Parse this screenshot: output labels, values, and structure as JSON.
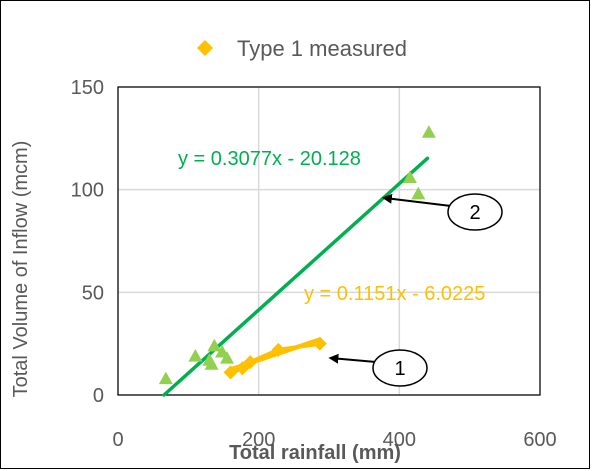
{
  "chart_data": {
    "type": "scatter",
    "title": "",
    "xlabel": "Total rainfall (mm)",
    "ylabel": "Total Volume of Inflow (mcm)",
    "xlim": [
      0,
      600
    ],
    "ylim": [
      0,
      150
    ],
    "x_ticks": [
      0,
      200,
      400,
      600
    ],
    "y_ticks": [
      0,
      50,
      100,
      150
    ],
    "grid": true,
    "legend_position": "top",
    "series": [
      {
        "name": "Type 1 measured",
        "marker": "diamond",
        "color": "#ffc000",
        "connect": true,
        "points": [
          [
            160,
            11
          ],
          [
            177,
            13
          ],
          [
            188,
            16
          ],
          [
            228,
            22
          ],
          [
            287,
            25
          ]
        ]
      },
      {
        "marker": "triangle",
        "color": "#92d050",
        "connect": false,
        "points": [
          [
            68,
            8
          ],
          [
            110,
            19
          ],
          [
            130,
            17
          ],
          [
            133,
            15
          ],
          [
            137,
            24
          ],
          [
            148,
            21
          ],
          [
            155,
            18
          ],
          [
            415,
            106
          ],
          [
            427,
            98
          ],
          [
            442,
            128
          ]
        ]
      }
    ],
    "trendlines": [
      {
        "equation": "y = 0.3077x - 20.128",
        "slope": 0.3077,
        "intercept": -20.128,
        "x_range": [
          65.4,
          440
        ],
        "color": "#00b050",
        "label_position": "upper-middle"
      },
      {
        "equation": "y = 0.1151x - 6.0225",
        "slope": 0.1151,
        "intercept": -6.0225,
        "x_range": [
          160,
          287
        ],
        "color": "#ffc000",
        "label_position": "right-middle"
      }
    ],
    "callouts": [
      {
        "label": "2",
        "target": [
          378,
          96
        ]
      },
      {
        "label": "1",
        "target": [
          302,
          18
        ]
      }
    ]
  }
}
